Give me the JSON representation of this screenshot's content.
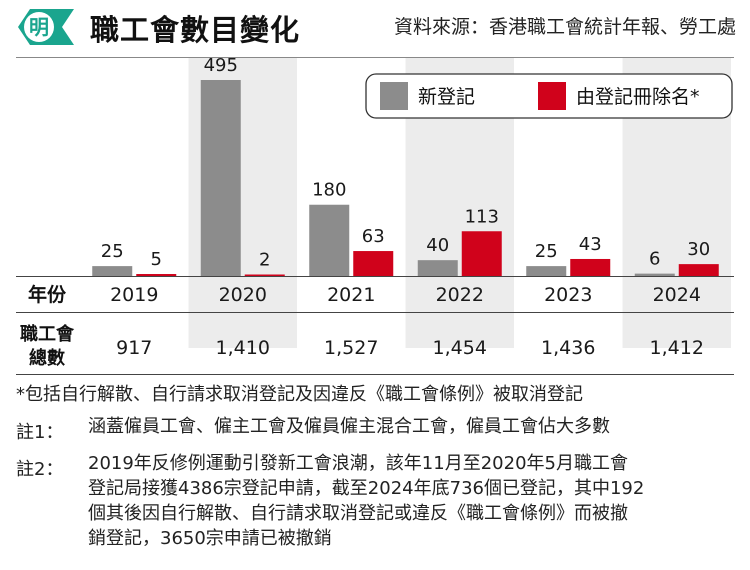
{
  "header": {
    "logo_char": "明",
    "title": "職工會數目變化",
    "source": "資料來源：香港職工會統計年報、勞工處"
  },
  "colors": {
    "new": "#8c8c8c",
    "removed": "#d0021b",
    "band": "#ececec",
    "logo": "#1aa58e"
  },
  "chart_data": {
    "type": "bar",
    "categories": [
      "2019",
      "2020",
      "2021",
      "2022",
      "2023",
      "2024"
    ],
    "series": [
      {
        "name": "新登記",
        "values": [
          25,
          495,
          180,
          40,
          25,
          6
        ]
      },
      {
        "name": "由登記冊除名*",
        "values": [
          5,
          2,
          63,
          113,
          43,
          30
        ]
      }
    ],
    "ylim": [
      0,
      495
    ],
    "legend": "top-right",
    "grid": false
  },
  "table": {
    "year_label": "年份",
    "total_label_line1": "職工會",
    "total_label_line2": "總數",
    "totals": [
      "917",
      "1,410",
      "1,527",
      "1,454",
      "1,436",
      "1,412"
    ]
  },
  "notes": {
    "star": "*包括自行解散、自行請求取消登記及因違反《職工會條例》被取消登記",
    "note1_label": "註1：",
    "note1_text": "涵蓋僱員工會、僱主工會及僱員僱主混合工會，僱員工會佔大多數",
    "note2_label": "註2：",
    "note2_line1": "2019年反修例運動引發新工會浪潮，該年11月至2020年5月職工會",
    "note2_line2": "登記局接獲4386宗登記申請，截至2024年底736個已登記，其中192",
    "note2_line3": "個其後因自行解散、自行請求取消登記或違反《職工會條例》而被撤",
    "note2_line4": "銷登記，3650宗申請已被撤銷"
  }
}
